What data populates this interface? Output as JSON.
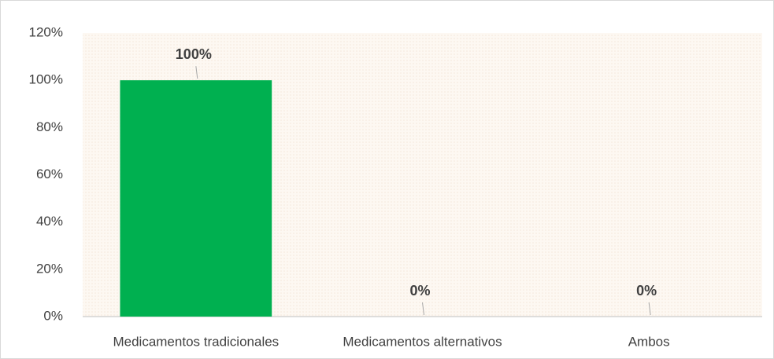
{
  "chart_data": {
    "type": "bar",
    "categories": [
      "Medicamentos tradicionales",
      "Medicamentos alternativos",
      "Ambos"
    ],
    "values": [
      100,
      0,
      0
    ],
    "value_labels": [
      "100%",
      "0%",
      "0%"
    ],
    "color": "#00b050",
    "ylim": [
      0,
      120
    ],
    "yticks": [
      {
        "value": 0,
        "label": "0%"
      },
      {
        "value": 20,
        "label": "20%"
      },
      {
        "value": 40,
        "label": "40%"
      },
      {
        "value": 60,
        "label": "60%"
      },
      {
        "value": 80,
        "label": "80%"
      },
      {
        "value": 100,
        "label": "100%"
      },
      {
        "value": 120,
        "label": "120%"
      }
    ]
  }
}
